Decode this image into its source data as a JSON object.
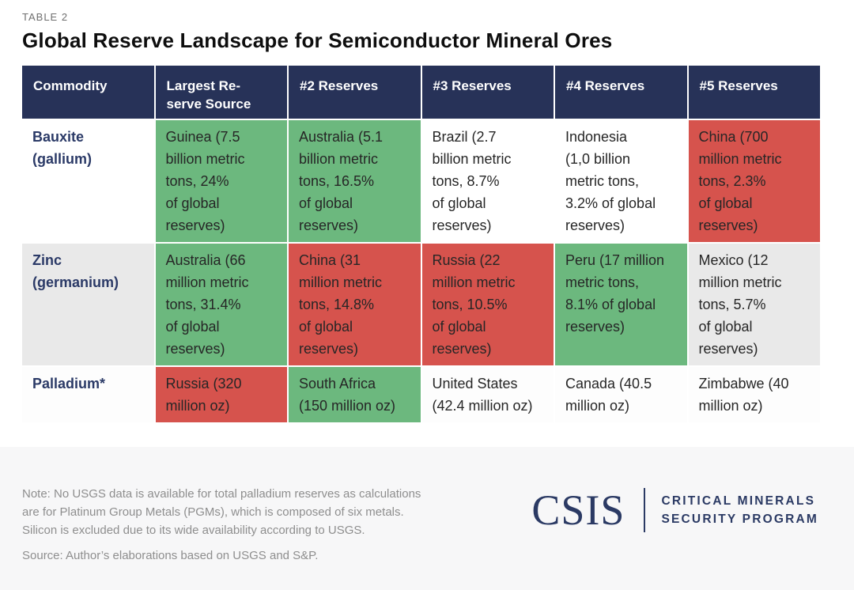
{
  "page": {
    "eyebrow": "TABLE 2",
    "title": "Global Reserve Landscape for Semiconductor Mineral Ores"
  },
  "colors": {
    "header_bg": "#273258",
    "green": "#6cb87e",
    "red": "#d6534d",
    "alt_row": "#e9e9e9",
    "navy_text": "#2b3a67",
    "body_text": "#262626",
    "muted_text": "#8e8e8e",
    "footer_bg": "#f7f7f8",
    "brand_navy": "#2b3a64"
  },
  "table": {
    "columns": [
      {
        "label": "Commodity"
      },
      {
        "label": "Largest Re-\nserve Source"
      },
      {
        "label": "#2 Reserves"
      },
      {
        "label": "#3 Reserves"
      },
      {
        "label": "#4 Reserves"
      },
      {
        "label": "#5 Reserves"
      }
    ],
    "rows": [
      {
        "commodity": "Bauxite\n(gallium)",
        "cells": [
          {
            "text": "Guinea (7.5\nbillion metric\ntons, 24%\nof global\nreserves)",
            "status": "green"
          },
          {
            "text": "Australia (5.1\nbillion metric\ntons, 16.5%\nof global\nreserves)",
            "status": "green"
          },
          {
            "text": "Brazil (2.7\nbillion metric\ntons, 8.7%\nof global\nreserves)",
            "status": "plain"
          },
          {
            "text": "Indonesia\n(1,0 billion\nmetric tons,\n3.2% of global\nreserves)",
            "status": "plain"
          },
          {
            "text": "China (700\nmillion metric\ntons, 2.3%\nof global\nreserves)",
            "status": "red"
          }
        ]
      },
      {
        "commodity": "Zinc\n(germanium)",
        "cells": [
          {
            "text": "Australia (66\nmillion metric\ntons, 31.4%\nof global\nreserves)",
            "status": "green"
          },
          {
            "text": "China (31\nmillion metric\ntons, 14.8%\nof global\nreserves)",
            "status": "red"
          },
          {
            "text": "Russia (22\nmillion metric\ntons, 10.5%\nof global\nreserves)",
            "status": "red"
          },
          {
            "text": "Peru (17 million\nmetric tons,\n8.1% of global\nreserves)",
            "status": "green"
          },
          {
            "text": "Mexico (12\nmillion metric\ntons, 5.7%\nof global\nreserves)",
            "status": "plain"
          }
        ]
      },
      {
        "commodity": "Palladium*",
        "cells": [
          {
            "text": "Russia (320\nmillion oz)",
            "status": "red"
          },
          {
            "text": "South Africa\n(150 million oz)",
            "status": "green"
          },
          {
            "text": "United States\n(42.4 million oz)",
            "status": "plain"
          },
          {
            "text": "Canada (40.5\nmillion oz)",
            "status": "plain"
          },
          {
            "text": "Zimbabwe (40\nmillion oz)",
            "status": "plain"
          }
        ]
      }
    ]
  },
  "footer": {
    "note": "Note: No USGS data is available for total palladium reserves as calculations\nare for Platinum Group Metals (PGMs), which is composed of six metals.\nSilicon is excluded due to its wide availability according to USGS.",
    "source": "Source: Author’s elaborations based on USGS and S&P.",
    "logo": {
      "wordmark": "CSIS",
      "program_line1": "CRITICAL MINERALS",
      "program_line2": "SECURITY PROGRAM"
    }
  }
}
